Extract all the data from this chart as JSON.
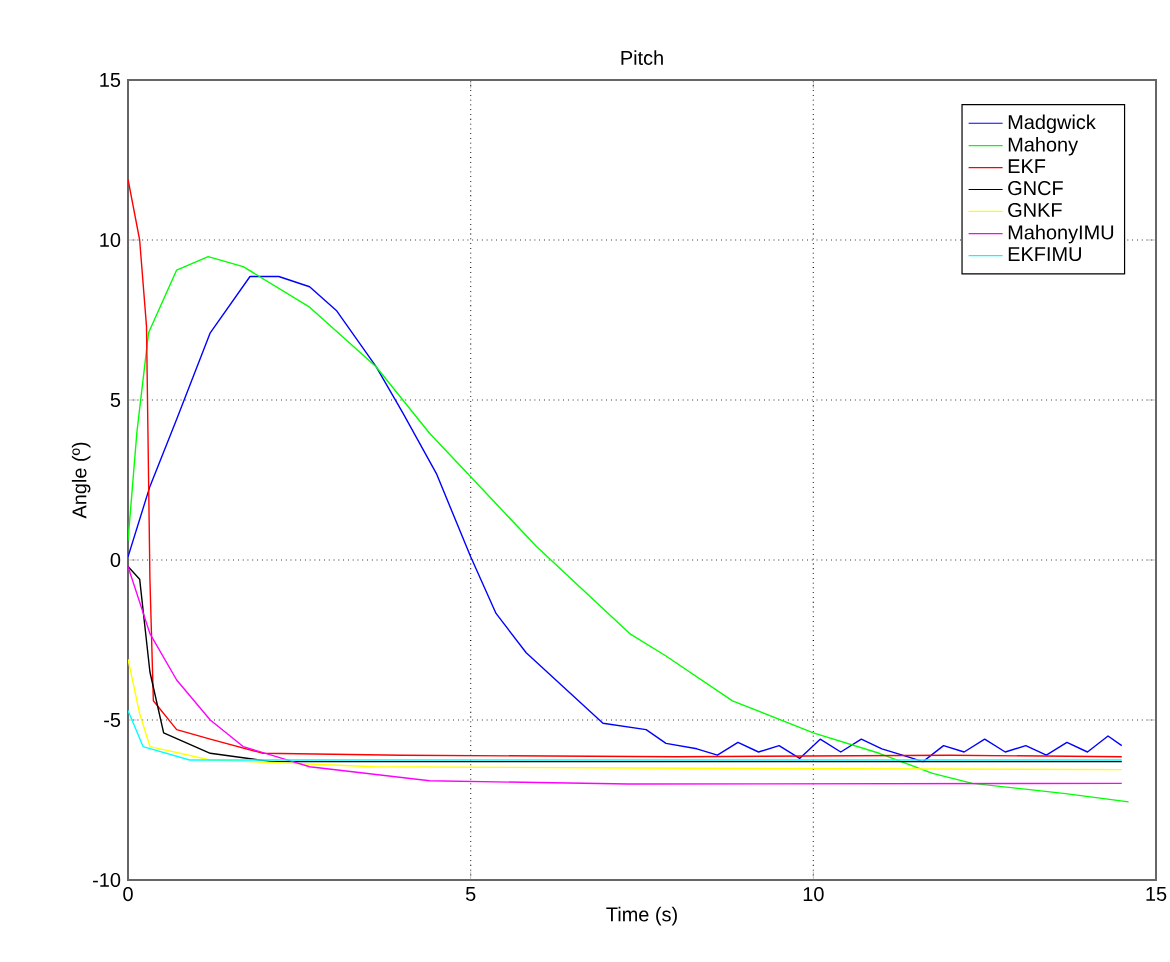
{
  "chart_data": {
    "type": "line",
    "title": "Pitch",
    "xlabel": "Time (s)",
    "ylabel": "Angle (º)",
    "xlim": [
      0,
      15
    ],
    "ylim": [
      -10,
      15
    ],
    "xticks": [
      0,
      5,
      10,
      15
    ],
    "yticks": [
      -10,
      -5,
      0,
      5,
      10,
      15
    ],
    "grid": true,
    "legend": "top right",
    "marker": "none",
    "line_style": "solid",
    "series": [
      {
        "name": "Madgwick",
        "color": "#0000ff",
        "x": [
          0,
          0.32,
          0.71,
          1.2,
          1.78,
          2.2,
          2.65,
          3.04,
          3.62,
          4.01,
          4.5,
          5.0,
          5.37,
          5.81,
          6.35,
          6.93,
          7.56,
          7.85,
          8.3,
          8.6,
          8.9,
          9.2,
          9.5,
          9.8,
          10.1,
          10.4,
          10.7,
          11.0,
          11.3,
          11.6,
          11.9,
          12.2,
          12.5,
          12.8,
          13.1,
          13.4,
          13.7,
          14.0,
          14.3,
          14.5
        ],
        "values": [
          0.1,
          2.3,
          4.4,
          7.1,
          8.86,
          8.86,
          8.54,
          7.8,
          6.04,
          4.6,
          2.7,
          0.1,
          -1.67,
          -2.9,
          -3.96,
          -5.1,
          -5.3,
          -5.73,
          -5.9,
          -6.1,
          -5.7,
          -6.0,
          -5.8,
          -6.2,
          -5.6,
          -6.0,
          -5.6,
          -5.9,
          -6.1,
          -6.3,
          -5.8,
          -6.0,
          -5.6,
          -6.0,
          -5.8,
          -6.1,
          -5.7,
          -6.0,
          -5.5,
          -5.8
        ]
      },
      {
        "name": "Mahony",
        "color": "#00ff00",
        "x": [
          0,
          0.13,
          0.3,
          0.71,
          1.17,
          1.68,
          2.65,
          3.62,
          4.4,
          5.0,
          5.96,
          7.32,
          7.85,
          8.82,
          10.0,
          10.96,
          11.74,
          12.32,
          13.68,
          14.6
        ],
        "values": [
          0.6,
          4.0,
          7.1,
          9.06,
          9.48,
          9.17,
          7.9,
          6.04,
          3.96,
          2.6,
          0.42,
          -2.3,
          -3.0,
          -4.4,
          -5.4,
          -6.04,
          -6.67,
          -6.98,
          -7.3,
          -7.56
        ]
      },
      {
        "name": "EKF",
        "color": "#ff0000",
        "x": [
          0,
          0.17,
          0.27,
          0.32,
          0.37,
          0.71,
          1.2,
          1.97,
          4.0,
          8.0,
          12.0,
          14.5
        ],
        "values": [
          11.9,
          10.0,
          7.3,
          -0.6,
          -4.4,
          -5.3,
          -5.6,
          -6.04,
          -6.1,
          -6.15,
          -6.1,
          -6.15
        ]
      },
      {
        "name": "GNCF",
        "color": "#000000",
        "x": [
          0,
          0.17,
          0.32,
          0.52,
          1.2,
          2.1,
          8.0,
          14.5
        ],
        "values": [
          -0.2,
          -0.6,
          -3.5,
          -5.4,
          -6.04,
          -6.3,
          -6.3,
          -6.3
        ]
      },
      {
        "name": "GNKF",
        "color": "#ffff00",
        "x": [
          0,
          0.17,
          0.32,
          1.2,
          3.6,
          7.3,
          14.5
        ],
        "values": [
          -3.1,
          -4.8,
          -5.83,
          -6.25,
          -6.46,
          -6.5,
          -6.55
        ]
      },
      {
        "name": "MahonyIMU",
        "color": "#ff00ff",
        "x": [
          0,
          0.32,
          0.71,
          1.2,
          1.68,
          2.65,
          4.4,
          7.3,
          14.5
        ],
        "values": [
          -0.2,
          -2.3,
          -3.75,
          -5.0,
          -5.83,
          -6.46,
          -6.9,
          -7.0,
          -6.98
        ]
      },
      {
        "name": "EKFIMU",
        "color": "#00ffff",
        "x": [
          0,
          0.22,
          0.9,
          3.6,
          14.5
        ],
        "values": [
          -4.7,
          -5.83,
          -6.25,
          -6.25,
          -6.25
        ]
      }
    ]
  }
}
